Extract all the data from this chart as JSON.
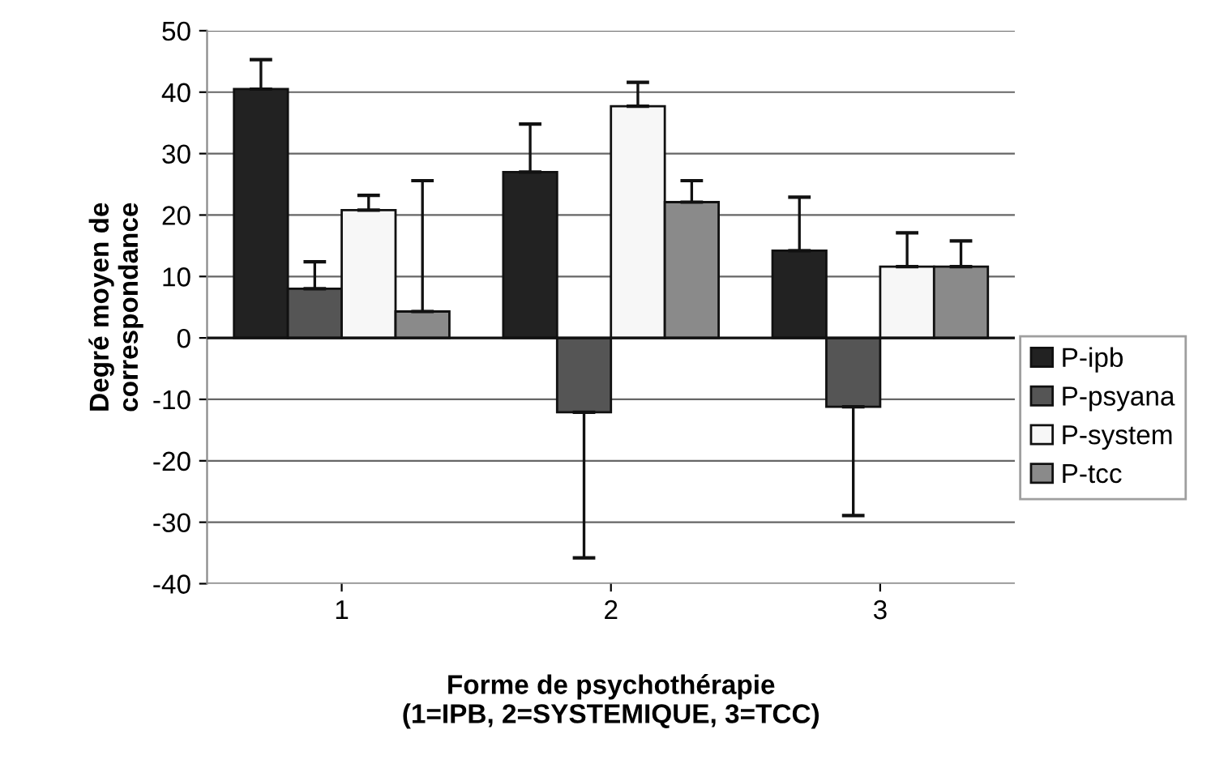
{
  "chart_data": {
    "type": "bar",
    "xlabel": "Forme de psychothérapie\n(1=IPB, 2=SYSTEMIQUE, 3=TCC)",
    "ylabel": "Degré moyen de\ncorrespondance",
    "categories": [
      "1",
      "2",
      "3"
    ],
    "series": [
      {
        "name": "P-ipb",
        "color": "#222222",
        "values": [
          40.5,
          27.0,
          14.2
        ],
        "errors": [
          [
            40.5,
            45.3
          ],
          [
            27.0,
            34.8
          ],
          [
            14.2,
            22.9
          ]
        ]
      },
      {
        "name": "P-psyana",
        "color": "#555555",
        "values": [
          8.0,
          -12.1,
          -11.2
        ],
        "errors": [
          [
            8.0,
            12.4
          ],
          [
            -35.8,
            -12.1
          ],
          [
            -28.9,
            -11.2
          ]
        ]
      },
      {
        "name": "P-system",
        "color": "#f7f7f7",
        "values": [
          20.8,
          37.7,
          11.6
        ],
        "errors": [
          [
            20.8,
            23.2
          ],
          [
            37.7,
            41.6
          ],
          [
            11.6,
            17.1
          ]
        ]
      },
      {
        "name": "P-tcc",
        "color": "#8a8a8a",
        "values": [
          4.3,
          22.1,
          11.6
        ],
        "errors": [
          [
            4.3,
            25.6
          ],
          [
            22.1,
            25.6
          ],
          [
            11.6,
            15.8
          ]
        ]
      }
    ],
    "ylim": [
      -40,
      50
    ],
    "yticks": [
      -40,
      -30,
      -20,
      -10,
      0,
      10,
      20,
      30,
      40,
      50
    ],
    "grid": "y",
    "legend": "right"
  }
}
